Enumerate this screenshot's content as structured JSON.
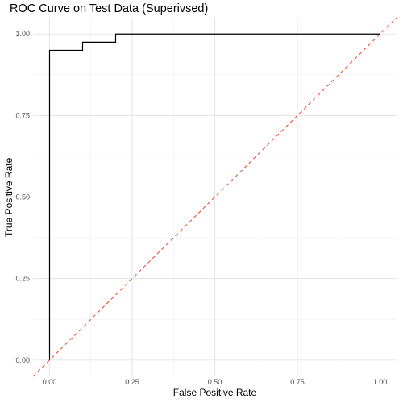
{
  "chart_data": {
    "type": "line",
    "title": "ROC Curve on Test Data (Superivsed)",
    "xlabel": "False Positive Rate",
    "ylabel": "True Positive Rate",
    "xlim": [
      -0.05,
      1.05
    ],
    "ylim": [
      -0.05,
      1.05
    ],
    "xticks": [
      0.0,
      0.25,
      0.5,
      0.75,
      1.0
    ],
    "yticks": [
      0.0,
      0.25,
      0.5,
      0.75,
      1.0
    ],
    "xtick_labels": [
      "0.00",
      "0.25",
      "0.50",
      "0.75",
      "1.00"
    ],
    "ytick_labels": [
      "0.00",
      "0.25",
      "0.50",
      "0.75",
      "1.00"
    ],
    "grid": true,
    "series": [
      {
        "style": "step",
        "color": "#000000",
        "x": [
          0.0,
          0.0,
          0.1,
          0.1,
          0.2,
          0.2,
          1.0
        ],
        "y": [
          0.0,
          0.95,
          0.95,
          0.975,
          0.975,
          1.0,
          1.0
        ]
      },
      {
        "style": "dashed",
        "color": "#e8553e",
        "x": [
          -0.05,
          1.05
        ],
        "y": [
          -0.05,
          1.05
        ]
      }
    ]
  }
}
